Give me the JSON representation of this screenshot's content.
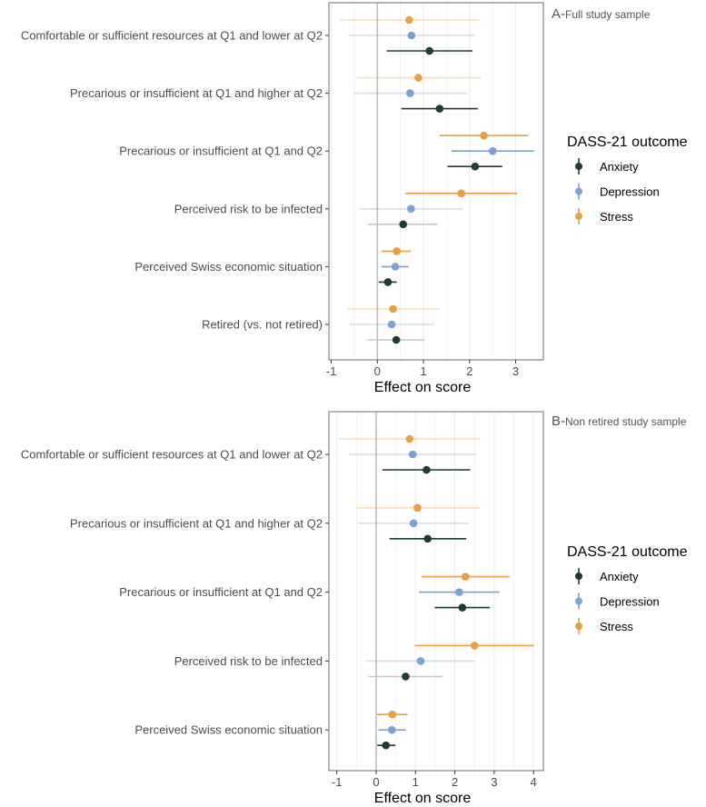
{
  "colors": {
    "Anxiety": "#1e3b35",
    "Depression": "#7ba2d3",
    "Stress": "#e8a043",
    "grid": "#ebebeb",
    "zero": "#bdbdbd",
    "border": "#6e6e6e"
  },
  "chart_data": [
    {
      "type": "forest",
      "panel_letter": "A-",
      "title": "Full study sample",
      "xlabel": "Effect on score",
      "xlim": [
        -1.05,
        3.6
      ],
      "xticks": [
        -1,
        0,
        1,
        2,
        3
      ],
      "grid": true,
      "legend": {
        "title": "DASS-21 outcome",
        "position": "right",
        "entries": [
          "Anxiety",
          "Depression",
          "Stress"
        ]
      },
      "rows": [
        {
          "label": "Comfortable or sufficient resources at Q1 and lower at Q2",
          "Stress": [
            0.69,
            -0.81,
            2.2
          ],
          "Depression": [
            0.74,
            -0.63,
            2.12
          ],
          "Anxiety": [
            1.13,
            0.2,
            2.06
          ]
        },
        {
          "label": "Precarious or insufficient at Q1 and higher at Q2",
          "Stress": [
            0.89,
            -0.45,
            2.25
          ],
          "Depression": [
            0.71,
            -0.51,
            1.95
          ],
          "Anxiety": [
            1.35,
            0.52,
            2.18
          ]
        },
        {
          "label": "Precarious or insufficient at Q1 and Q2",
          "Stress": [
            2.31,
            1.35,
            3.27
          ],
          "Depression": [
            2.5,
            1.61,
            3.39
          ],
          "Anxiety": [
            2.12,
            1.52,
            2.71
          ]
        },
        {
          "label": "Perceived risk to be infected",
          "Stress": [
            1.82,
            0.6,
            3.03
          ],
          "Depression": [
            0.73,
            -0.39,
            1.85
          ],
          "Anxiety": [
            0.56,
            -0.2,
            1.31
          ]
        },
        {
          "label": "Perceived Swiss economic situation",
          "Stress": [
            0.42,
            0.09,
            0.73
          ],
          "Depression": [
            0.39,
            0.09,
            0.68
          ],
          "Anxiety": [
            0.23,
            0.03,
            0.42
          ]
        },
        {
          "label": "Retired (vs. not retired)",
          "Stress": [
            0.34,
            -0.65,
            1.35
          ],
          "Depression": [
            0.31,
            -0.6,
            1.23
          ],
          "Anxiety": [
            0.41,
            -0.21,
            1.02
          ]
        }
      ]
    },
    {
      "type": "forest",
      "panel_letter": "B-",
      "title": "Non retired study sample",
      "xlabel": "Effect on score",
      "xlim": [
        -1.2,
        4.25
      ],
      "xticks": [
        -1,
        0,
        1,
        2,
        3,
        4
      ],
      "grid": true,
      "legend": {
        "title": "DASS-21 outcome",
        "position": "right",
        "entries": [
          "Anxiety",
          "Depression",
          "Stress"
        ]
      },
      "rows": [
        {
          "label": "Comfortable or sufficient resources at Q1 and lower at Q2",
          "Stress": [
            0.85,
            -0.94,
            2.64
          ],
          "Depression": [
            0.93,
            -0.69,
            2.55
          ],
          "Anxiety": [
            1.28,
            0.16,
            2.39
          ]
        },
        {
          "label": "Precarious or insufficient at Q1 and higher at Q2",
          "Stress": [
            1.05,
            -0.52,
            2.62
          ],
          "Depression": [
            0.95,
            -0.46,
            2.37
          ],
          "Anxiety": [
            1.31,
            0.34,
            2.29
          ]
        },
        {
          "label": "Precarious or insufficient at Q1 and Q2",
          "Stress": [
            2.27,
            1.15,
            3.39
          ],
          "Depression": [
            2.11,
            1.09,
            3.13
          ],
          "Anxiety": [
            2.19,
            1.49,
            2.89
          ]
        },
        {
          "label": "Perceived risk to be infected",
          "Stress": [
            2.5,
            0.98,
            4.01
          ],
          "Depression": [
            1.13,
            -0.25,
            2.51
          ],
          "Anxiety": [
            0.75,
            -0.2,
            1.69
          ]
        },
        {
          "label": "Perceived Swiss economic situation",
          "Stress": [
            0.41,
            0.02,
            0.8
          ],
          "Depression": [
            0.4,
            0.06,
            0.75
          ],
          "Anxiety": [
            0.25,
            0.03,
            0.49
          ]
        }
      ]
    }
  ]
}
